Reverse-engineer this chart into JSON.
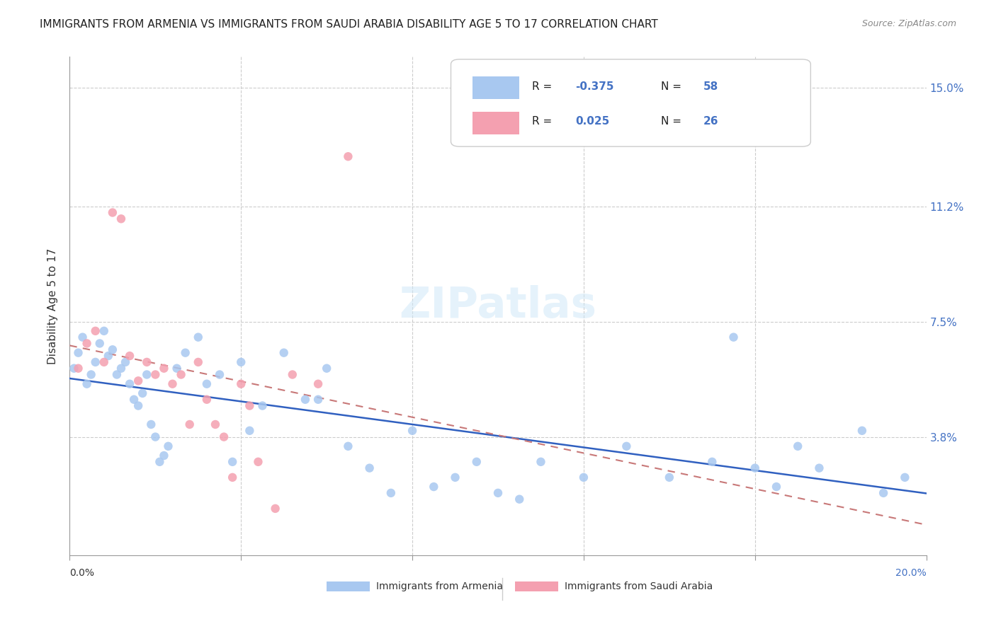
{
  "title": "IMMIGRANTS FROM ARMENIA VS IMMIGRANTS FROM SAUDI ARABIA DISABILITY AGE 5 TO 17 CORRELATION CHART",
  "source": "Source: ZipAtlas.com",
  "ylabel": "Disability Age 5 to 17",
  "xmin": 0.0,
  "xmax": 0.2,
  "ymin": 0.0,
  "ymax": 0.16,
  "yticks": [
    0.038,
    0.075,
    0.112,
    0.15
  ],
  "ytick_labels": [
    "3.8%",
    "7.5%",
    "11.2%",
    "15.0%"
  ],
  "legend_label_1": "Immigrants from Armenia",
  "legend_label_2": "Immigrants from Saudi Arabia",
  "R1": "-0.375",
  "N1": "58",
  "R2": "0.025",
  "N2": "26",
  "color_armenia": "#a8c8f0",
  "color_saudi": "#f4a0b0",
  "color_line_armenia": "#3060c0",
  "color_line_saudi": "#c87878",
  "armenia_x": [
    0.001,
    0.002,
    0.003,
    0.004,
    0.005,
    0.006,
    0.007,
    0.008,
    0.009,
    0.01,
    0.011,
    0.012,
    0.013,
    0.014,
    0.015,
    0.016,
    0.017,
    0.018,
    0.019,
    0.02,
    0.021,
    0.022,
    0.023,
    0.025,
    0.027,
    0.03,
    0.032,
    0.035,
    0.038,
    0.04,
    0.042,
    0.045,
    0.05,
    0.055,
    0.058,
    0.06,
    0.065,
    0.07,
    0.075,
    0.08,
    0.085,
    0.09,
    0.095,
    0.1,
    0.105,
    0.11,
    0.12,
    0.13,
    0.14,
    0.15,
    0.155,
    0.16,
    0.165,
    0.17,
    0.175,
    0.185,
    0.19,
    0.195
  ],
  "armenia_y": [
    0.06,
    0.065,
    0.07,
    0.055,
    0.058,
    0.062,
    0.068,
    0.072,
    0.064,
    0.066,
    0.058,
    0.06,
    0.062,
    0.055,
    0.05,
    0.048,
    0.052,
    0.058,
    0.042,
    0.038,
    0.03,
    0.032,
    0.035,
    0.06,
    0.065,
    0.07,
    0.055,
    0.058,
    0.03,
    0.062,
    0.04,
    0.048,
    0.065,
    0.05,
    0.05,
    0.06,
    0.035,
    0.028,
    0.02,
    0.04,
    0.022,
    0.025,
    0.03,
    0.02,
    0.018,
    0.03,
    0.025,
    0.035,
    0.025,
    0.03,
    0.07,
    0.028,
    0.022,
    0.035,
    0.028,
    0.04,
    0.02,
    0.025
  ],
  "saudi_x": [
    0.002,
    0.004,
    0.006,
    0.008,
    0.01,
    0.012,
    0.014,
    0.016,
    0.018,
    0.02,
    0.022,
    0.024,
    0.026,
    0.028,
    0.03,
    0.032,
    0.034,
    0.036,
    0.038,
    0.04,
    0.042,
    0.044,
    0.048,
    0.052,
    0.058,
    0.065
  ],
  "saudi_y": [
    0.06,
    0.068,
    0.072,
    0.062,
    0.11,
    0.108,
    0.064,
    0.056,
    0.062,
    0.058,
    0.06,
    0.055,
    0.058,
    0.042,
    0.062,
    0.05,
    0.042,
    0.038,
    0.025,
    0.055,
    0.048,
    0.03,
    0.015,
    0.058,
    0.055,
    0.128
  ]
}
